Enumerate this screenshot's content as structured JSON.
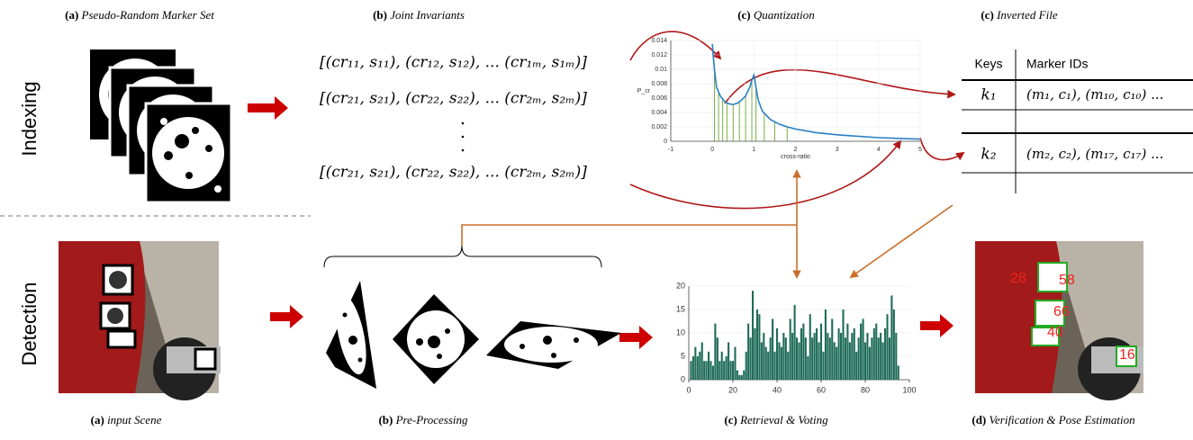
{
  "labels": {
    "indexing": "Indexing",
    "detection": "Detection"
  },
  "captions": {
    "top": [
      {
        "tag": "(a)",
        "text": "Pseudo-Random Marker Set"
      },
      {
        "tag": "(b)",
        "text": "Joint Invariants"
      },
      {
        "tag": "(c)",
        "text": "Quantization"
      },
      {
        "tag": "(c)",
        "text": "Inverted File"
      }
    ],
    "bottom": [
      {
        "tag": "(a)",
        "text": "input Scene"
      },
      {
        "tag": "(b)",
        "text": "Pre-Processing"
      },
      {
        "tag": "(c)",
        "text": "Retrieval & Voting"
      },
      {
        "tag": "(d)",
        "text": "Verification & Pose Estimation"
      }
    ]
  },
  "formulas": [
    "[(cr₁₁, s₁₁), (cr₁₂, s₁₂), ... (cr₁ₘ, s₁ₘ)]",
    "[(cr₂₁, s₂₁), (cr₂₂, s₂₂), ... (cr₂ₘ, s₂ₘ)]",
    "[(cr₂₁, s₂₁), (cr₂₂, s₂₂), ... (cr₂ₘ, s₂ₘ)]"
  ],
  "table": {
    "headers": [
      "Keys",
      "Marker IDs"
    ],
    "rows": [
      [
        "k₁",
        "(m₁, c₁), (m₁₀, c₁₀) ..."
      ],
      [
        "k₂",
        "(m₂, c₂), (m₁₇, c₁₇) ..."
      ]
    ]
  },
  "detections": [
    "28",
    "58",
    "66",
    "40",
    "16"
  ],
  "chart_data": [
    {
      "type": "line",
      "x_label": "cross-ratio",
      "y_label": "P_cr",
      "color": "#2a7fc4",
      "xlim": [
        -1,
        5
      ],
      "ylim": [
        0,
        0.014
      ],
      "xticks": [
        -1,
        0,
        1,
        2,
        3,
        4,
        5
      ],
      "yticks": [
        0,
        0.002,
        0.004,
        0.006,
        0.008,
        0.01,
        0.012,
        0.014
      ],
      "x": [
        0,
        0.05,
        0.1,
        0.2,
        0.3,
        0.4,
        0.5,
        0.6,
        0.7,
        0.8,
        0.9,
        0.95,
        1.0,
        1.05,
        1.1,
        1.2,
        1.4,
        1.6,
        1.8,
        2,
        2.5,
        3,
        3.5,
        4,
        4.5,
        5
      ],
      "values": [
        0.0135,
        0.01,
        0.0075,
        0.0062,
        0.0055,
        0.0052,
        0.0051,
        0.0053,
        0.0057,
        0.0063,
        0.0075,
        0.0085,
        0.0092,
        0.0075,
        0.0058,
        0.0042,
        0.003,
        0.0024,
        0.002,
        0.0017,
        0.0012,
        0.0009,
        0.0007,
        0.0005,
        0.0004,
        0.0003
      ],
      "quant_lines": {
        "color": "#6aa530",
        "x": [
          0.05,
          0.15,
          0.25,
          0.35,
          0.5,
          0.65,
          0.8,
          0.95,
          1.05,
          1.25,
          1.5,
          1.8
        ],
        "values": [
          0.01,
          0.0068,
          0.0058,
          0.0053,
          0.0051,
          0.0055,
          0.0063,
          0.0085,
          0.0075,
          0.0038,
          0.0027,
          0.002
        ]
      }
    },
    {
      "type": "bar",
      "color": "#1e6b58",
      "xlim": [
        0,
        100
      ],
      "ylim": [
        0,
        20
      ],
      "xticks": [
        0,
        20,
        40,
        60,
        80,
        100
      ],
      "yticks": [
        0,
        5,
        10,
        15,
        20
      ],
      "x": [
        1,
        2,
        3,
        4,
        5,
        6,
        7,
        8,
        9,
        10,
        11,
        12,
        13,
        14,
        15,
        16,
        17,
        18,
        19,
        20,
        21,
        22,
        23,
        24,
        25,
        26,
        27,
        28,
        29,
        30,
        31,
        32,
        33,
        34,
        35,
        36,
        37,
        38,
        39,
        40,
        41,
        42,
        43,
        44,
        45,
        46,
        47,
        48,
        49,
        50,
        51,
        52,
        53,
        54,
        55,
        56,
        57,
        58,
        59,
        60,
        61,
        62,
        63,
        64,
        65,
        66,
        67,
        68,
        69,
        70,
        71,
        72,
        73,
        74,
        75,
        76,
        77,
        78,
        79,
        80,
        81,
        82,
        83,
        84,
        85,
        86,
        87,
        88,
        89,
        90,
        91,
        92,
        93,
        94,
        95
      ],
      "values": [
        4,
        5,
        7,
        5,
        6,
        8,
        4,
        4,
        6,
        4,
        3,
        12,
        9,
        4,
        6,
        4,
        5,
        8,
        4,
        4,
        7,
        2,
        1,
        1,
        2,
        6,
        12,
        9,
        19,
        11,
        15,
        14,
        8,
        10,
        7,
        6,
        9,
        13,
        6,
        11,
        8,
        7,
        10,
        9,
        6,
        13,
        10,
        16,
        9,
        8,
        11,
        12,
        9,
        5,
        14,
        9,
        10,
        11,
        8,
        12,
        6,
        15,
        10,
        9,
        13,
        8,
        7,
        11,
        10,
        15,
        9,
        12,
        8,
        10,
        11,
        6,
        9,
        12,
        13,
        8,
        10,
        7,
        9,
        11,
        12,
        9,
        10,
        8,
        11,
        14,
        9,
        18,
        15,
        10,
        3
      ]
    }
  ]
}
